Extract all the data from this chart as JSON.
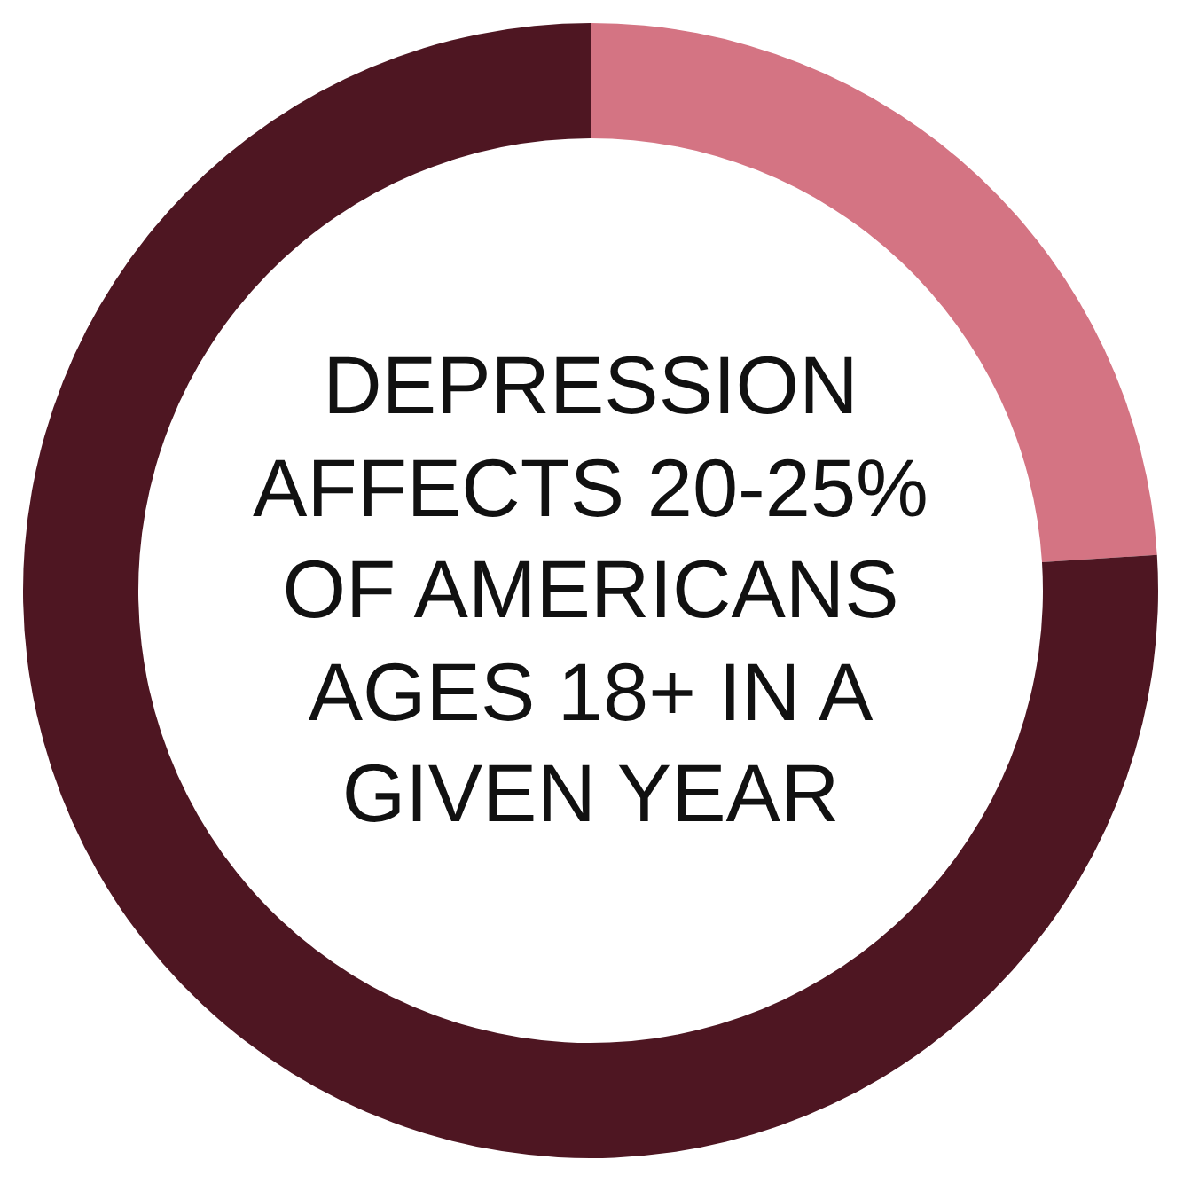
{
  "chart_data": {
    "type": "donut",
    "title": "DEPRESSION AFFECTS 20-25% OF AMERICANS AGES 18+ IN A GIVEN YEAR",
    "categories": [
      null,
      null
    ],
    "values": [
      24,
      76
    ],
    "colors": [
      "#d47483",
      "#4e1622"
    ]
  }
}
